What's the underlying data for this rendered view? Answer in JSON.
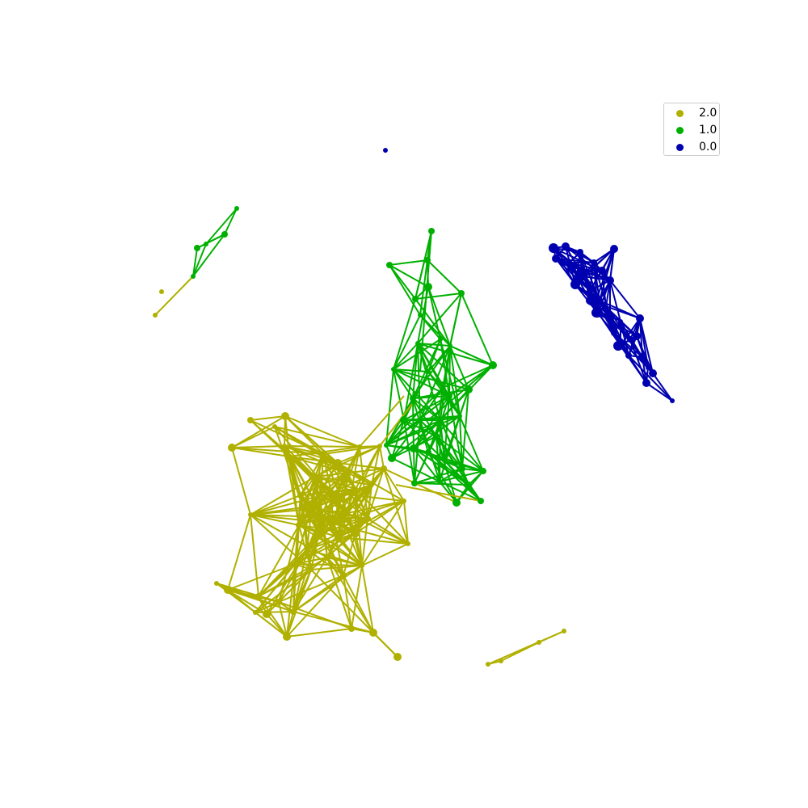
{
  "legend": {
    "entries": [
      {
        "label": "2.0",
        "color": "#b0b000"
      },
      {
        "label": "1.0",
        "color": "#00b000"
      },
      {
        "label": "0.0",
        "color": "#0000b0"
      }
    ]
  }
}
